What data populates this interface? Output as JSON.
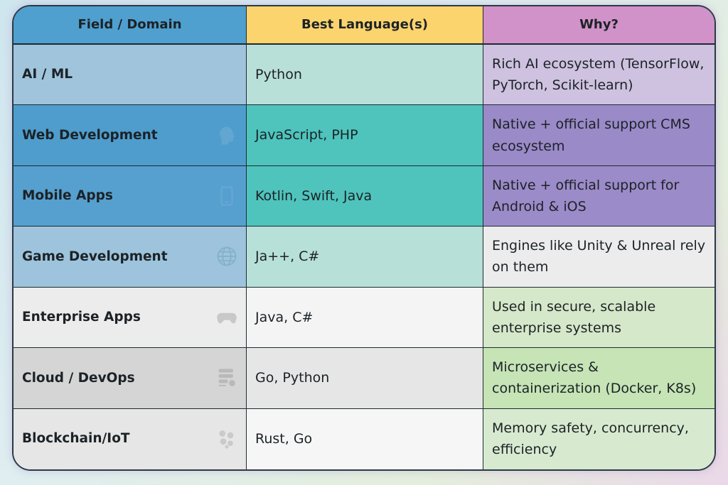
{
  "headers": [
    "Field / Domain",
    "Best Language(s)",
    "Why?"
  ],
  "header_colors": [
    "#4f9fcf",
    "#fbd46e",
    "#d092c8"
  ],
  "rows": [
    {
      "field": "AI / ML",
      "languages": "Python",
      "why": "Rich AI ecosystem (TensorFlow, PyTorch, Scikit-learn)",
      "icon": "",
      "colors": [
        "#a0c4dc",
        "#b9e0d8",
        "#cec2e0"
      ]
    },
    {
      "field": "Web Development",
      "languages": "JavaScript, PHP",
      "why": "Native + official support CMS ecosystem",
      "icon": "brain-head-icon",
      "colors": [
        "#4e9dcd",
        "#4ec4bd",
        "#9a8ac8"
      ]
    },
    {
      "field": "Mobile Apps",
      "languages": "Kotlin, Swift, Java",
      "why": "Native + official support for Android & iOS",
      "icon": "smartphone-icon",
      "colors": [
        "#56a0cf",
        "#4fc4bd",
        "#9c8bc9"
      ]
    },
    {
      "field": "Game Development",
      "languages": "Ja++, C#",
      "why": "Engines like Unity & Unreal rely on them",
      "icon": "globe-icon",
      "colors": [
        "#9dc4dc",
        "#b7e0d8",
        "#ececec"
      ]
    },
    {
      "field": "Enterprise Apps",
      "languages": "Java, C#",
      "why": "Used in secure, scalable enterprise systems",
      "icon": "gamepad-icon",
      "colors": [
        "#ececec",
        "#f4f4f4",
        "#d5e8c9"
      ]
    },
    {
      "field": "Cloud / DevOps",
      "languages": "Go, Python",
      "why": "Microservices & containerization (Docker, K8s)",
      "icon": "server-gear-icon",
      "colors": [
        "#d5d5d5",
        "#e6e6e6",
        "#c6e4b6"
      ]
    },
    {
      "field": "Blockchain/IoT",
      "languages": "Rust, Go",
      "why": "Memory safety, concurrency, efficiency",
      "icon": "gears-icon",
      "colors": [
        "#e6e6e6",
        "#f6f6f6",
        "#d7ead0"
      ]
    }
  ]
}
